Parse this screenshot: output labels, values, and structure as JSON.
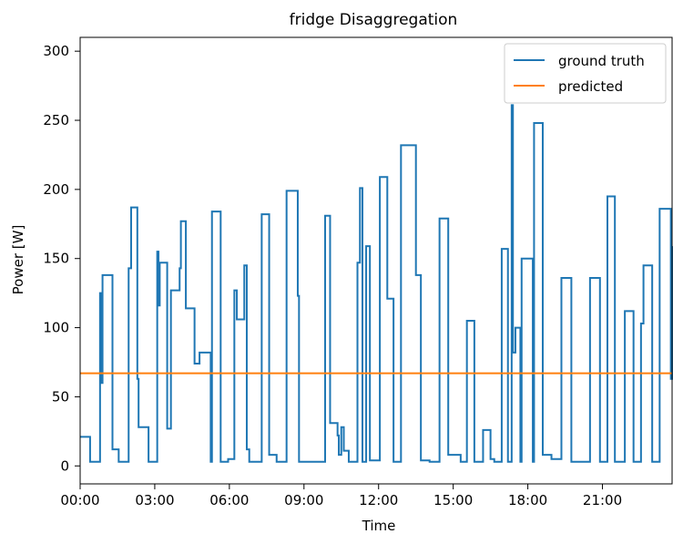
{
  "chart_data": {
    "type": "line",
    "title": "fridge Disaggregation",
    "xlabel": "Time",
    "ylabel": "Power [W]",
    "xlim": [
      0,
      23.8
    ],
    "ylim": [
      -13,
      310
    ],
    "x_ticks": [
      {
        "value": 0,
        "label": "00:00"
      },
      {
        "value": 3,
        "label": "03:00"
      },
      {
        "value": 6,
        "label": "06:00"
      },
      {
        "value": 9,
        "label": "09:00"
      },
      {
        "value": 12,
        "label": "12:00"
      },
      {
        "value": 15,
        "label": "15:00"
      },
      {
        "value": 18,
        "label": "18:00"
      },
      {
        "value": 21,
        "label": "21:00"
      }
    ],
    "y_ticks": [
      0,
      50,
      100,
      150,
      200,
      250,
      300
    ],
    "legend": {
      "placement": "upper-right"
    },
    "colors": {
      "ground_truth": "#1f77b4",
      "predicted": "#ff7f0e"
    },
    "series": [
      {
        "name": "ground truth",
        "step": true,
        "x": [
          0,
          0.4,
          0.8,
          0.85,
          0.9,
          1.3,
          1.55,
          1.95,
          2.05,
          2.3,
          2.35,
          2.75,
          3.1,
          3.15,
          3.2,
          3.5,
          3.65,
          4.0,
          4.05,
          4.25,
          4.6,
          4.8,
          5.25,
          5.3,
          5.65,
          5.95,
          6.2,
          6.3,
          6.6,
          6.7,
          6.8,
          7.0,
          7.3,
          7.6,
          7.9,
          8.3,
          8.75,
          8.8,
          9.1,
          9.5,
          9.85,
          10.05,
          10.35,
          10.4,
          10.5,
          10.6,
          10.8,
          11.15,
          11.25,
          11.35,
          11.5,
          11.65,
          12.05,
          12.35,
          12.6,
          12.9,
          13.5,
          13.7,
          14.05,
          14.45,
          14.8,
          15.3,
          15.55,
          15.85,
          16.2,
          16.5,
          16.65,
          16.95,
          17.2,
          17.35,
          17.4,
          17.5,
          17.7,
          17.75,
          18.2,
          18.25,
          18.6,
          18.95,
          19.35,
          19.75,
          20.15,
          20.5,
          20.9,
          21.2,
          21.5,
          21.9,
          22.25,
          22.55,
          22.65,
          23.0,
          23.3,
          23.75,
          23.8
        ],
        "y": [
          21,
          3,
          125,
          60,
          138,
          12,
          3,
          143,
          187,
          63,
          28,
          3,
          155,
          116,
          147,
          27,
          127,
          143,
          177,
          114,
          74,
          82,
          3,
          184,
          3,
          5,
          127,
          106,
          145,
          12,
          3,
          3,
          182,
          8,
          3,
          199,
          123,
          3,
          3,
          3,
          181,
          31,
          22,
          8,
          28,
          11,
          3,
          147,
          201,
          3,
          159,
          4,
          209,
          121,
          3,
          232,
          138,
          4,
          3,
          179,
          8,
          3,
          105,
          3,
          26,
          5,
          3,
          157,
          3,
          261,
          82,
          100,
          3,
          150,
          3,
          248,
          8,
          5,
          136,
          3,
          3,
          136,
          3,
          195,
          3,
          112,
          3,
          103,
          145,
          3,
          186,
          63,
          159
        ]
      },
      {
        "name": "predicted",
        "step": false,
        "x": [
          0,
          23.8
        ],
        "y": [
          67,
          67
        ]
      }
    ]
  }
}
